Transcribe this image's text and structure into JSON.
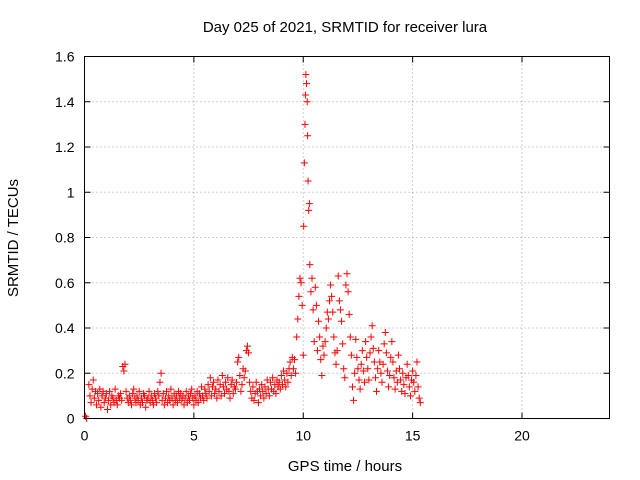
{
  "chart_data": {
    "type": "scatter",
    "title": "Day 025 of 2021, SRMTID for receiver lura",
    "xlabel": "GPS time / hours",
    "ylabel": "SRMTID / TECUs",
    "xlim": [
      0,
      24
    ],
    "ylim": [
      0,
      1.6
    ],
    "xticks": [
      0,
      5,
      10,
      15,
      20
    ],
    "xtick_labels": [
      "0",
      "5",
      "10",
      "15",
      "20"
    ],
    "yticks": [
      0,
      0.2,
      0.4,
      0.6,
      0.8,
      1.0,
      1.2,
      1.4,
      1.6
    ],
    "ytick_labels": [
      "0",
      "0.2",
      "0.4",
      "0.6",
      "0.8",
      "1",
      "1.2",
      "1.4",
      "1.6"
    ],
    "grid": true,
    "marker": "+",
    "marker_color": "#ff0000",
    "series": [
      {
        "name": "SRMTID",
        "color": "#ff0000",
        "points": [
          [
            0.05,
            0.01
          ],
          [
            0.1,
            0.0
          ],
          [
            0.2,
            0.15
          ],
          [
            0.25,
            0.1
          ],
          [
            0.3,
            0.07
          ],
          [
            0.35,
            0.13
          ],
          [
            0.4,
            0.17
          ],
          [
            0.45,
            0.09
          ],
          [
            0.5,
            0.12
          ],
          [
            0.55,
            0.06
          ],
          [
            0.6,
            0.11
          ],
          [
            0.65,
            0.08
          ],
          [
            0.7,
            0.13
          ],
          [
            0.75,
            0.05
          ],
          [
            0.8,
            0.1
          ],
          [
            0.85,
            0.12
          ],
          [
            0.9,
            0.07
          ],
          [
            0.95,
            0.09
          ],
          [
            1.0,
            0.11
          ],
          [
            1.05,
            0.04
          ],
          [
            1.1,
            0.08
          ],
          [
            1.15,
            0.12
          ],
          [
            1.2,
            0.06
          ],
          [
            1.25,
            0.1
          ],
          [
            1.3,
            0.09
          ],
          [
            1.35,
            0.07
          ],
          [
            1.4,
            0.13
          ],
          [
            1.45,
            0.08
          ],
          [
            1.5,
            0.06
          ],
          [
            1.55,
            0.1
          ],
          [
            1.6,
            0.09
          ],
          [
            1.65,
            0.11
          ],
          [
            1.7,
            0.08
          ],
          [
            1.75,
            0.23
          ],
          [
            1.8,
            0.21
          ],
          [
            1.85,
            0.24
          ],
          [
            1.9,
            0.12
          ],
          [
            1.95,
            0.09
          ],
          [
            2.0,
            0.07
          ],
          [
            2.05,
            0.1
          ],
          [
            2.1,
            0.08
          ],
          [
            2.15,
            0.06
          ],
          [
            2.2,
            0.11
          ],
          [
            2.25,
            0.13
          ],
          [
            2.3,
            0.09
          ],
          [
            2.35,
            0.07
          ],
          [
            2.4,
            0.1
          ],
          [
            2.45,
            0.08
          ],
          [
            2.5,
            0.12
          ],
          [
            2.55,
            0.06
          ],
          [
            2.6,
            0.09
          ],
          [
            2.65,
            0.07
          ],
          [
            2.7,
            0.11
          ],
          [
            2.75,
            0.1
          ],
          [
            2.8,
            0.05
          ],
          [
            2.85,
            0.08
          ],
          [
            2.9,
            0.09
          ],
          [
            2.95,
            0.12
          ],
          [
            3.0,
            0.07
          ],
          [
            3.05,
            0.1
          ],
          [
            3.1,
            0.08
          ],
          [
            3.15,
            0.06
          ],
          [
            3.2,
            0.11
          ],
          [
            3.25,
            0.09
          ],
          [
            3.3,
            0.07
          ],
          [
            3.35,
            0.12
          ],
          [
            3.4,
            0.1
          ],
          [
            3.45,
            0.16
          ],
          [
            3.5,
            0.2
          ],
          [
            3.55,
            0.08
          ],
          [
            3.6,
            0.11
          ],
          [
            3.65,
            0.06
          ],
          [
            3.7,
            0.09
          ],
          [
            3.75,
            0.12
          ],
          [
            3.8,
            0.07
          ],
          [
            3.85,
            0.1
          ],
          [
            3.9,
            0.08
          ],
          [
            3.95,
            0.13
          ],
          [
            4.0,
            0.09
          ],
          [
            4.05,
            0.06
          ],
          [
            4.1,
            0.11
          ],
          [
            4.15,
            0.08
          ],
          [
            4.2,
            0.1
          ],
          [
            4.25,
            0.07
          ],
          [
            4.3,
            0.12
          ],
          [
            4.35,
            0.09
          ],
          [
            4.4,
            0.11
          ],
          [
            4.45,
            0.08
          ],
          [
            4.5,
            0.1
          ],
          [
            4.55,
            0.06
          ],
          [
            4.6,
            0.09
          ],
          [
            4.65,
            0.12
          ],
          [
            4.7,
            0.07
          ],
          [
            4.75,
            0.1
          ],
          [
            4.8,
            0.08
          ],
          [
            4.85,
            0.11
          ],
          [
            4.9,
            0.13
          ],
          [
            4.95,
            0.09
          ],
          [
            5.0,
            0.06
          ],
          [
            5.05,
            0.1
          ],
          [
            5.1,
            0.08
          ],
          [
            5.15,
            0.12
          ],
          [
            5.2,
            0.07
          ],
          [
            5.25,
            0.11
          ],
          [
            5.3,
            0.09
          ],
          [
            5.35,
            0.14
          ],
          [
            5.4,
            0.1
          ],
          [
            5.45,
            0.08
          ],
          [
            5.5,
            0.13
          ],
          [
            5.55,
            0.11
          ],
          [
            5.6,
            0.09
          ],
          [
            5.65,
            0.15
          ],
          [
            5.7,
            0.12
          ],
          [
            5.75,
            0.18
          ],
          [
            5.8,
            0.1
          ],
          [
            5.85,
            0.14
          ],
          [
            5.9,
            0.16
          ],
          [
            5.95,
            0.11
          ],
          [
            6.0,
            0.13
          ],
          [
            6.05,
            0.09
          ],
          [
            6.1,
            0.17
          ],
          [
            6.15,
            0.12
          ],
          [
            6.2,
            0.15
          ],
          [
            6.25,
            0.1
          ],
          [
            6.3,
            0.19
          ],
          [
            6.35,
            0.14
          ],
          [
            6.4,
            0.11
          ],
          [
            6.45,
            0.16
          ],
          [
            6.5,
            0.13
          ],
          [
            6.55,
            0.18
          ],
          [
            6.6,
            0.12
          ],
          [
            6.65,
            0.09
          ],
          [
            6.7,
            0.15
          ],
          [
            6.75,
            0.17
          ],
          [
            6.8,
            0.11
          ],
          [
            6.85,
            0.14
          ],
          [
            6.9,
            0.13
          ],
          [
            6.95,
            0.16
          ],
          [
            7.0,
            0.25
          ],
          [
            7.05,
            0.27
          ],
          [
            7.1,
            0.19
          ],
          [
            7.15,
            0.12
          ],
          [
            7.2,
            0.15
          ],
          [
            7.25,
            0.22
          ],
          [
            7.3,
            0.18
          ],
          [
            7.35,
            0.21
          ],
          [
            7.4,
            0.3
          ],
          [
            7.45,
            0.32
          ],
          [
            7.5,
            0.29
          ],
          [
            7.55,
            0.16
          ],
          [
            7.6,
            0.12
          ],
          [
            7.65,
            0.09
          ],
          [
            7.7,
            0.14
          ],
          [
            7.75,
            0.08
          ],
          [
            7.8,
            0.11
          ],
          [
            7.85,
            0.16
          ],
          [
            7.9,
            0.12
          ],
          [
            7.95,
            0.07
          ],
          [
            8.0,
            0.13
          ],
          [
            8.05,
            0.1
          ],
          [
            8.1,
            0.15
          ],
          [
            8.15,
            0.12
          ],
          [
            8.2,
            0.09
          ],
          [
            8.25,
            0.14
          ],
          [
            8.3,
            0.11
          ],
          [
            8.35,
            0.17
          ],
          [
            8.4,
            0.13
          ],
          [
            8.45,
            0.1
          ],
          [
            8.5,
            0.16
          ],
          [
            8.55,
            0.13
          ],
          [
            8.6,
            0.18
          ],
          [
            8.65,
            0.12
          ],
          [
            8.7,
            0.15
          ],
          [
            8.75,
            0.11
          ],
          [
            8.8,
            0.17
          ],
          [
            8.85,
            0.14
          ],
          [
            8.9,
            0.16
          ],
          [
            8.95,
            0.13
          ],
          [
            9.0,
            0.19
          ],
          [
            9.05,
            0.15
          ],
          [
            9.1,
            0.21
          ],
          [
            9.15,
            0.17
          ],
          [
            9.2,
            0.14
          ],
          [
            9.25,
            0.2
          ],
          [
            9.3,
            0.16
          ],
          [
            9.35,
            0.22
          ],
          [
            9.4,
            0.25
          ],
          [
            9.45,
            0.19
          ],
          [
            9.5,
            0.27
          ],
          [
            9.55,
            0.22
          ],
          [
            9.6,
            0.26
          ],
          [
            9.65,
            0.2
          ],
          [
            9.7,
            0.36
          ],
          [
            9.75,
            0.44
          ],
          [
            9.8,
            0.54
          ],
          [
            9.85,
            0.62
          ],
          [
            9.9,
            0.6
          ],
          [
            9.95,
            0.5
          ],
          [
            10.0,
            0.28
          ],
          [
            10.02,
            0.85
          ],
          [
            10.05,
            1.13
          ],
          [
            10.08,
            1.3
          ],
          [
            10.1,
            1.43
          ],
          [
            10.12,
            1.52
          ],
          [
            10.15,
            1.48
          ],
          [
            10.18,
            1.4
          ],
          [
            10.2,
            1.25
          ],
          [
            10.22,
            1.05
          ],
          [
            10.25,
            0.92
          ],
          [
            10.28,
            0.95
          ],
          [
            10.3,
            0.68
          ],
          [
            10.35,
            0.56
          ],
          [
            10.4,
            0.62
          ],
          [
            10.45,
            0.48
          ],
          [
            10.5,
            0.34
          ],
          [
            10.55,
            0.58
          ],
          [
            10.6,
            0.5
          ],
          [
            10.65,
            0.3
          ],
          [
            10.7,
            0.43
          ],
          [
            10.75,
            0.36
          ],
          [
            10.8,
            0.26
          ],
          [
            10.85,
            0.19
          ],
          [
            10.9,
            0.32
          ],
          [
            10.95,
            0.28
          ],
          [
            11.0,
            0.34
          ],
          [
            11.05,
            0.4
          ],
          [
            11.1,
            0.47
          ],
          [
            11.15,
            0.44
          ],
          [
            11.2,
            0.52
          ],
          [
            11.25,
            0.59
          ],
          [
            11.3,
            0.54
          ],
          [
            11.35,
            0.47
          ],
          [
            11.4,
            0.36
          ],
          [
            11.45,
            0.29
          ],
          [
            11.5,
            0.24
          ],
          [
            11.55,
            0.3
          ],
          [
            11.6,
            0.63
          ],
          [
            11.65,
            0.52
          ],
          [
            11.7,
            0.48
          ],
          [
            11.75,
            0.43
          ],
          [
            11.8,
            0.33
          ],
          [
            11.85,
            0.22
          ],
          [
            11.9,
            0.18
          ],
          [
            11.95,
            0.59
          ],
          [
            12.0,
            0.64
          ],
          [
            12.05,
            0.56
          ],
          [
            12.1,
            0.46
          ],
          [
            12.15,
            0.36
          ],
          [
            12.2,
            0.28
          ],
          [
            12.25,
            0.14
          ],
          [
            12.3,
            0.08
          ],
          [
            12.35,
            0.2
          ],
          [
            12.4,
            0.35
          ],
          [
            12.45,
            0.27
          ],
          [
            12.5,
            0.22
          ],
          [
            12.55,
            0.17
          ],
          [
            12.6,
            0.13
          ],
          [
            12.65,
            0.24
          ],
          [
            12.7,
            0.3
          ],
          [
            12.75,
            0.21
          ],
          [
            12.8,
            0.16
          ],
          [
            12.85,
            0.34
          ],
          [
            12.9,
            0.27
          ],
          [
            12.95,
            0.22
          ],
          [
            13.0,
            0.17
          ],
          [
            13.05,
            0.29
          ],
          [
            13.1,
            0.36
          ],
          [
            13.15,
            0.41
          ],
          [
            13.2,
            0.31
          ],
          [
            13.25,
            0.25
          ],
          [
            13.3,
            0.18
          ],
          [
            13.35,
            0.12
          ],
          [
            13.4,
            0.22
          ],
          [
            13.45,
            0.3
          ],
          [
            13.5,
            0.25
          ],
          [
            13.55,
            0.2
          ],
          [
            13.6,
            0.16
          ],
          [
            13.65,
            0.24
          ],
          [
            13.7,
            0.33
          ],
          [
            13.75,
            0.38
          ],
          [
            13.8,
            0.29
          ],
          [
            13.85,
            0.21
          ],
          [
            13.9,
            0.14
          ],
          [
            13.95,
            0.19
          ],
          [
            14.0,
            0.27
          ],
          [
            14.05,
            0.34
          ],
          [
            14.1,
            0.25
          ],
          [
            14.15,
            0.18
          ],
          [
            14.2,
            0.13
          ],
          [
            14.25,
            0.21
          ],
          [
            14.3,
            0.16
          ],
          [
            14.35,
            0.28
          ],
          [
            14.4,
            0.22
          ],
          [
            14.45,
            0.17
          ],
          [
            14.5,
            0.12
          ],
          [
            14.55,
            0.2
          ],
          [
            14.6,
            0.15
          ],
          [
            14.65,
            0.11
          ],
          [
            14.7,
            0.18
          ],
          [
            14.75,
            0.24
          ],
          [
            14.8,
            0.19
          ],
          [
            14.85,
            0.14
          ],
          [
            14.9,
            0.1
          ],
          [
            14.95,
            0.17
          ],
          [
            15.0,
            0.21
          ],
          [
            15.05,
            0.16
          ],
          [
            15.1,
            0.12
          ],
          [
            15.15,
            0.19
          ],
          [
            15.2,
            0.25
          ],
          [
            15.25,
            0.14
          ],
          [
            15.3,
            0.09
          ],
          [
            15.35,
            0.07
          ]
        ]
      }
    ]
  }
}
